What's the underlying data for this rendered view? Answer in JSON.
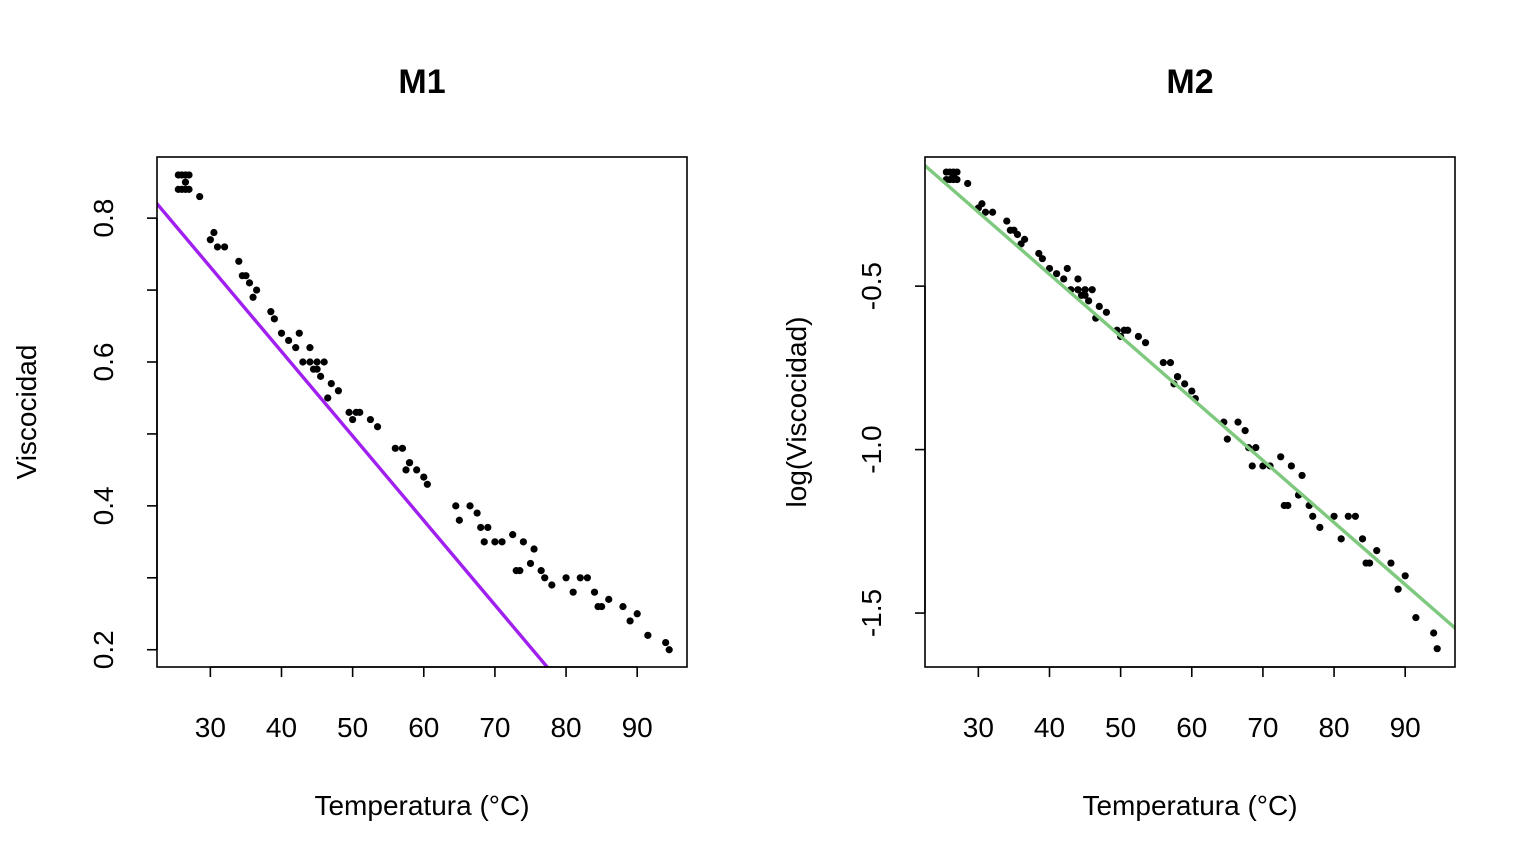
{
  "chart_data": [
    {
      "type": "scatter",
      "title": "M1",
      "xlabel": "Temperatura (°C)",
      "ylabel": "Viscocidad",
      "xlim": [
        22.5,
        97
      ],
      "ylim": [
        0.176,
        0.885
      ],
      "xticks": [
        30,
        40,
        50,
        60,
        70,
        80,
        90
      ],
      "xtick_labels": [
        "30",
        "40",
        "50",
        "60",
        "70",
        "80",
        "90"
      ],
      "yticks": [
        0.2,
        0.3,
        0.4,
        0.5,
        0.6,
        0.7,
        0.8
      ],
      "ytick_labels": [
        "0.2",
        "",
        "0.4",
        "",
        "0.6",
        "",
        "0.8"
      ],
      "fit_line": {
        "intercept": 1.0843,
        "slope": -0.011744,
        "color": "#a020f0"
      },
      "point_color": "#000000",
      "x": [
        25.5,
        26,
        26.5,
        26.5,
        27,
        26,
        26.5,
        25.5,
        27,
        28.5,
        30,
        30.5,
        31,
        32,
        34,
        34.5,
        35,
        35.5,
        36,
        36.5,
        38.5,
        39,
        40,
        41,
        42,
        42.5,
        43,
        44,
        44,
        44.5,
        45,
        45,
        45.5,
        46,
        46.5,
        47,
        48,
        49.5,
        50,
        50.5,
        51,
        52.5,
        53.5,
        56,
        57,
        57.5,
        58,
        58,
        59,
        60,
        60.5,
        64.5,
        65,
        66.5,
        67.5,
        68,
        68.5,
        69,
        70,
        71,
        72.5,
        73,
        73.5,
        74,
        75,
        75.5,
        76.5,
        77,
        78,
        80,
        81,
        82,
        83,
        84,
        84.5,
        85,
        86,
        88,
        89,
        90,
        91.5,
        94,
        94.5
      ],
      "y": [
        0.86,
        0.86,
        0.86,
        0.85,
        0.86,
        0.84,
        0.84,
        0.84,
        0.84,
        0.83,
        0.77,
        0.78,
        0.76,
        0.76,
        0.74,
        0.72,
        0.72,
        0.71,
        0.69,
        0.7,
        0.67,
        0.66,
        0.64,
        0.63,
        0.62,
        0.64,
        0.6,
        0.62,
        0.6,
        0.59,
        0.6,
        0.59,
        0.58,
        0.6,
        0.55,
        0.57,
        0.56,
        0.53,
        0.52,
        0.53,
        0.53,
        0.52,
        0.51,
        0.48,
        0.48,
        0.45,
        0.46,
        0.46,
        0.45,
        0.44,
        0.43,
        0.4,
        0.38,
        0.4,
        0.39,
        0.37,
        0.35,
        0.37,
        0.35,
        0.35,
        0.36,
        0.31,
        0.31,
        0.35,
        0.32,
        0.34,
        0.31,
        0.3,
        0.29,
        0.3,
        0.28,
        0.3,
        0.3,
        0.28,
        0.26,
        0.26,
        0.27,
        0.26,
        0.24,
        0.25,
        0.22,
        0.21,
        0.2
      ]
    },
    {
      "type": "scatter",
      "title": "M2",
      "xlabel": "Temperatura (°C)",
      "ylabel": "log(Viscocidad)",
      "xlim": [
        22.5,
        97
      ],
      "ylim": [
        -1.665,
        -0.105
      ],
      "xticks": [
        30,
        40,
        50,
        60,
        70,
        80,
        90
      ],
      "xtick_labels": [
        "30",
        "40",
        "50",
        "60",
        "70",
        "80",
        "90"
      ],
      "yticks": [
        -1.5,
        -1.0,
        -0.5
      ],
      "ytick_labels": [
        "-1.5",
        "-1.0",
        "-0.5"
      ],
      "fit_line": {
        "intercept": 0.2958,
        "slope": -0.018986,
        "color": "#7fc97f"
      },
      "point_color": "#000000",
      "x": [
        25.5,
        26,
        26.5,
        26.5,
        27,
        26,
        26.5,
        25.5,
        27,
        28.5,
        30,
        30.5,
        31,
        32,
        34,
        34.5,
        35,
        35.5,
        36,
        36.5,
        38.5,
        39,
        40,
        41,
        42,
        42.5,
        43,
        44,
        44,
        44.5,
        45,
        45,
        45.5,
        46,
        46.5,
        47,
        48,
        49.5,
        50,
        50.5,
        51,
        52.5,
        53.5,
        56,
        57,
        57.5,
        58,
        58,
        59,
        60,
        60.5,
        64.5,
        65,
        66.5,
        67.5,
        68,
        68.5,
        69,
        70,
        71,
        72.5,
        73,
        73.5,
        74,
        75,
        75.5,
        76.5,
        77,
        78,
        80,
        81,
        82,
        83,
        84,
        84.5,
        85,
        86,
        88,
        89,
        90,
        91.5,
        94,
        94.5
      ],
      "y": [
        -0.151,
        -0.151,
        -0.151,
        -0.163,
        -0.151,
        -0.174,
        -0.174,
        -0.174,
        -0.174,
        -0.186,
        -0.261,
        -0.248,
        -0.274,
        -0.274,
        -0.301,
        -0.329,
        -0.329,
        -0.342,
        -0.371,
        -0.357,
        -0.4,
        -0.416,
        -0.446,
        -0.462,
        -0.478,
        -0.446,
        -0.511,
        -0.478,
        -0.511,
        -0.528,
        -0.511,
        -0.528,
        -0.545,
        -0.511,
        -0.598,
        -0.562,
        -0.58,
        -0.635,
        -0.654,
        -0.635,
        -0.635,
        -0.654,
        -0.673,
        -0.734,
        -0.734,
        -0.799,
        -0.777,
        -0.777,
        -0.799,
        -0.821,
        -0.844,
        -0.916,
        -0.968,
        -0.916,
        -0.942,
        -0.994,
        -1.05,
        -0.994,
        -1.05,
        -1.05,
        -1.022,
        -1.171,
        -1.171,
        -1.05,
        -1.139,
        -1.079,
        -1.171,
        -1.204,
        -1.238,
        -1.204,
        -1.273,
        -1.204,
        -1.204,
        -1.273,
        -1.347,
        -1.347,
        -1.309,
        -1.347,
        -1.427,
        -1.386,
        -1.514,
        -1.561,
        -1.609
      ]
    }
  ]
}
